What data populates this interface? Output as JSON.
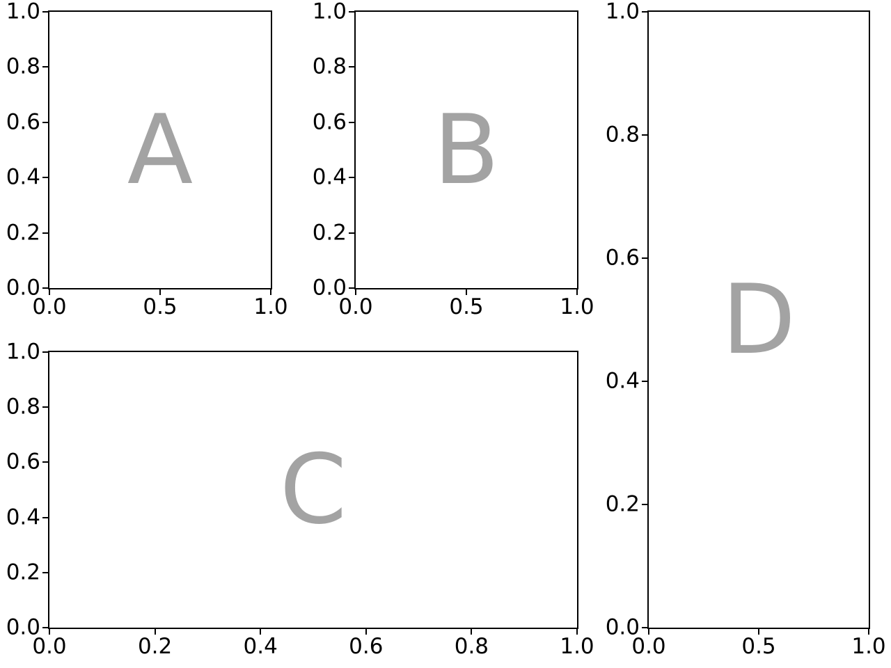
{
  "figure": {
    "background_color": "#ffffff",
    "spine_color": "#000000",
    "tick_color": "#000000",
    "tick_label_color": "#000000",
    "letter_color": "#a3a3a3",
    "layout_hint": "subplot mosaic: rows [[A,B,D],[C,C,D]], grid off, no titles, no axis labels"
  },
  "chart_data": [
    {
      "key": "A",
      "type": "scatter",
      "title": "",
      "xlabel": "",
      "ylabel": "",
      "xlim": [
        0.0,
        1.0
      ],
      "ylim": [
        0.0,
        1.0
      ],
      "x_tick_labels": [
        "0.0",
        "0.5",
        "1.0"
      ],
      "y_tick_labels": [
        "0.0",
        "0.2",
        "0.4",
        "0.6",
        "0.8",
        "1.0"
      ],
      "points": [],
      "grid": false,
      "legend": null,
      "annotations": [
        {
          "text": "A",
          "x": 0.5,
          "y": 0.5
        }
      ]
    },
    {
      "key": "B",
      "type": "scatter",
      "title": "",
      "xlabel": "",
      "ylabel": "",
      "xlim": [
        0.0,
        1.0
      ],
      "ylim": [
        0.0,
        1.0
      ],
      "x_tick_labels": [
        "0.0",
        "0.5",
        "1.0"
      ],
      "y_tick_labels": [
        "0.0",
        "0.2",
        "0.4",
        "0.6",
        "0.8",
        "1.0"
      ],
      "points": [],
      "grid": false,
      "legend": null,
      "annotations": [
        {
          "text": "B",
          "x": 0.5,
          "y": 0.5
        }
      ]
    },
    {
      "key": "C",
      "type": "scatter",
      "title": "",
      "xlabel": "",
      "ylabel": "",
      "xlim": [
        0.0,
        1.0
      ],
      "ylim": [
        0.0,
        1.0
      ],
      "x_tick_labels": [
        "0.0",
        "0.2",
        "0.4",
        "0.6",
        "0.8",
        "1.0"
      ],
      "y_tick_labels": [
        "0.0",
        "0.2",
        "0.4",
        "0.6",
        "0.8",
        "1.0"
      ],
      "points": [],
      "grid": false,
      "legend": null,
      "annotations": [
        {
          "text": "C",
          "x": 0.5,
          "y": 0.5
        }
      ]
    },
    {
      "key": "D",
      "type": "scatter",
      "title": "",
      "xlabel": "",
      "ylabel": "",
      "xlim": [
        0.0,
        1.0
      ],
      "ylim": [
        0.0,
        1.0
      ],
      "x_tick_labels": [
        "0.0",
        "0.5",
        "1.0"
      ],
      "y_tick_labels": [
        "0.0",
        "0.2",
        "0.4",
        "0.6",
        "0.8",
        "1.0"
      ],
      "points": [],
      "grid": false,
      "legend": null,
      "annotations": [
        {
          "text": "D",
          "x": 0.5,
          "y": 0.5
        }
      ]
    }
  ]
}
